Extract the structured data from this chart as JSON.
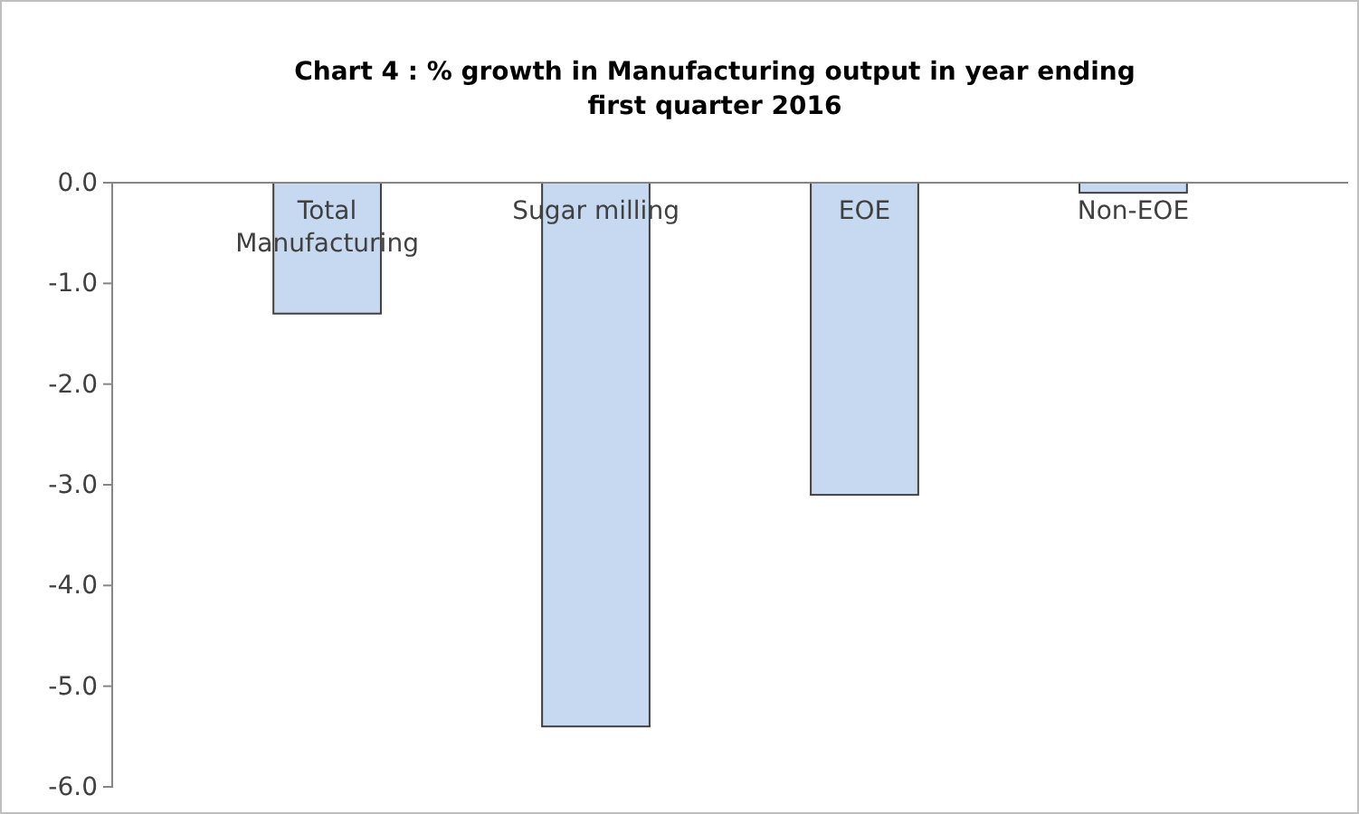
{
  "chart_data": {
    "type": "bar",
    "title": "Chart 4 : % growth in Manufacturing output in year ending first quarter 2016",
    "categories": [
      "Total Manufacturing",
      "Sugar milling",
      "EOE",
      "Non-EOE"
    ],
    "values": [
      -1.3,
      -5.4,
      -3.1,
      -0.1
    ],
    "color": "#c6d9f1",
    "ylim": [
      -6,
      0
    ],
    "yticks": [
      {
        "value": 0,
        "label": "0.0"
      },
      {
        "value": -1,
        "label": "-1.0"
      },
      {
        "value": -2,
        "label": "-2.0"
      },
      {
        "value": -3,
        "label": "-3.0"
      },
      {
        "value": -4,
        "label": "-4.0"
      },
      {
        "value": -5,
        "label": "-5.0"
      },
      {
        "value": -6,
        "label": "-6.0"
      }
    ],
    "grid": false
  }
}
